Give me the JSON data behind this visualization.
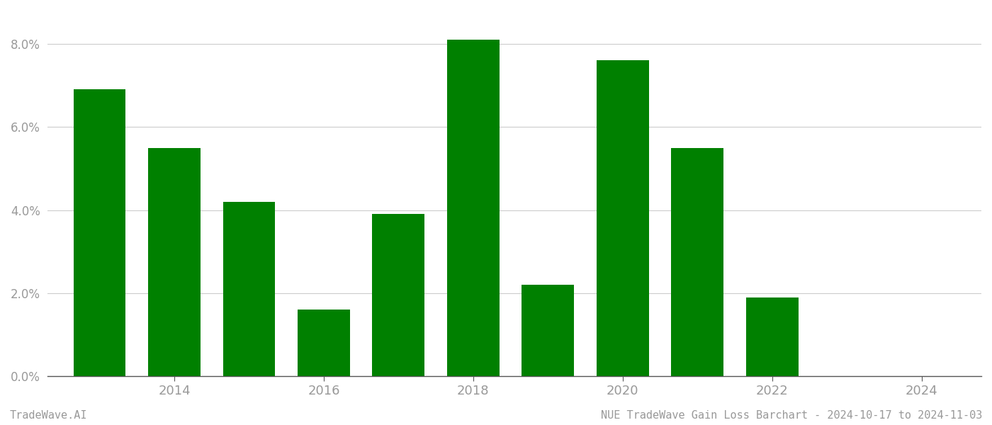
{
  "years": [
    2013,
    2014,
    2015,
    2016,
    2017,
    2018,
    2019,
    2020,
    2021,
    2022,
    2023
  ],
  "values": [
    0.069,
    0.055,
    0.042,
    0.016,
    0.039,
    0.081,
    0.022,
    0.076,
    0.055,
    0.019,
    0.0
  ],
  "bar_color": "#008000",
  "background_color": "#ffffff",
  "ylim": [
    0.0,
    0.088
  ],
  "yticks": [
    0.0,
    0.02,
    0.04,
    0.06,
    0.08
  ],
  "ytick_labels": [
    "0.0%",
    "2.0%",
    "4.0%",
    "6.0%",
    "8.0%"
  ],
  "xtick_positions": [
    2014,
    2016,
    2018,
    2020,
    2022,
    2024
  ],
  "xtick_labels": [
    "2014",
    "2016",
    "2018",
    "2020",
    "2022",
    "2024"
  ],
  "xlim_left": 2012.3,
  "xlim_right": 2024.8,
  "footer_left": "TradeWave.AI",
  "footer_right": "NUE TradeWave Gain Loss Barchart - 2024-10-17 to 2024-11-03",
  "bar_width": 0.7,
  "grid_color": "#cccccc",
  "tick_color": "#999999",
  "label_color": "#999999"
}
